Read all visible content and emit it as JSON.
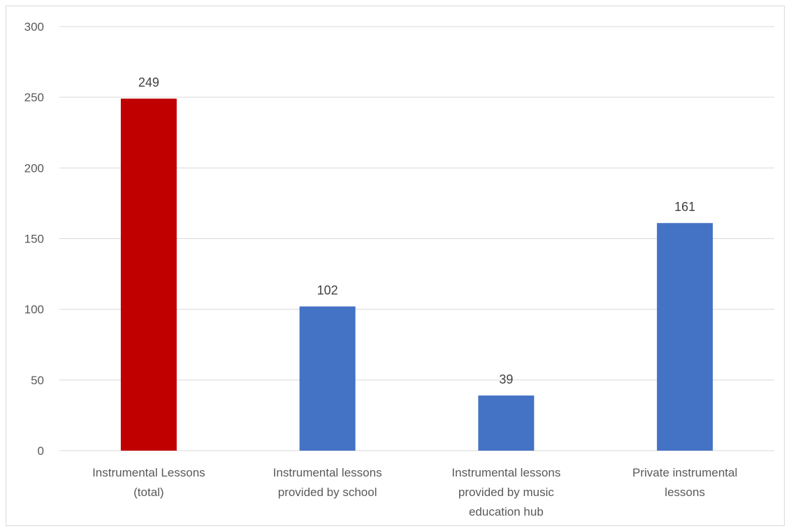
{
  "chart_data": {
    "type": "bar",
    "categories": [
      [
        "Instrumental Lessons",
        "(total)"
      ],
      [
        "Instrumental lessons",
        "provided by school"
      ],
      [
        "Instrumental lessons",
        "provided by music",
        "education hub"
      ],
      [
        "Private instrumental",
        "lessons"
      ]
    ],
    "values": [
      249,
      102,
      39,
      161
    ],
    "bar_colors": [
      "#C00000",
      "#4472C4",
      "#4472C4",
      "#4472C4"
    ],
    "ylim": [
      0,
      300
    ],
    "yticks": [
      0,
      50,
      100,
      150,
      200,
      250,
      300
    ],
    "grid": true,
    "gridline_color": "#d9d9d9",
    "data_labels": true,
    "title": "",
    "xlabel": "",
    "ylabel": ""
  }
}
